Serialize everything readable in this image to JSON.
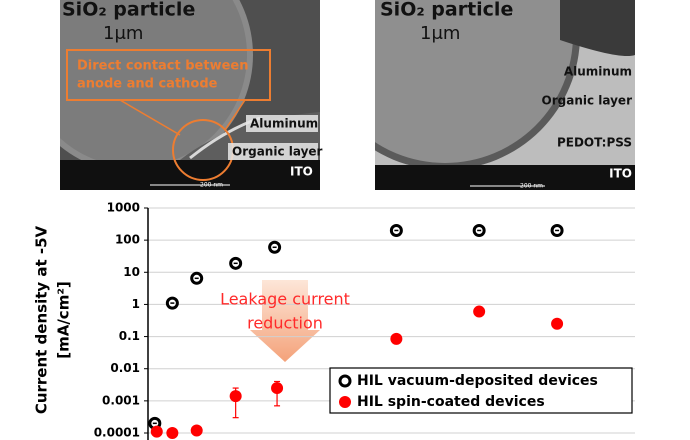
{
  "images": [
    {
      "particle": "SiO₂ particle",
      "size": "1μm",
      "callout": [
        "Direct contact between",
        "anode and cathode"
      ],
      "layers": [
        "Aluminum",
        "Organic layer",
        "ITO"
      ],
      "scale_bar": "200 nm"
    },
    {
      "particle": "SiO₂ particle",
      "size": "1μm",
      "layers": [
        "Aluminum",
        "Organic layer",
        "PEDOT:PSS",
        "ITO"
      ],
      "scale_bar": "200 nm"
    }
  ],
  "chart_data": {
    "type": "scatter",
    "y_label": [
      "Current density at -5V",
      "[mA/cm²]"
    ],
    "annotation": [
      "Leakage current",
      "reduction"
    ],
    "log_y": true,
    "grid": true,
    "legend": "lower right",
    "xlim": [
      0,
      10
    ],
    "ylim": [
      0.0001,
      1000
    ],
    "yticks": [
      1000,
      100,
      10,
      1,
      0.1,
      0.01,
      0.001,
      0.0001
    ],
    "series": [
      {
        "name": "HIL vacuum-deposited devices",
        "color": "#000000",
        "marker": "ring",
        "x": [
          0.14,
          0.5,
          1.0,
          1.8,
          2.6,
          5.1,
          6.8,
          8.4
        ],
        "values": [
          0.0002,
          1.1,
          6.5,
          19,
          60,
          200,
          200,
          200
        ]
      },
      {
        "name": "HIL spin-coated devices",
        "color": "#ff0000",
        "marker": "filled",
        "x": [
          0.18,
          0.5,
          1.0,
          1.8,
          2.65,
          5.1,
          6.8,
          8.4
        ],
        "values": [
          0.00011,
          0.0001,
          0.00012,
          0.0014,
          0.0025,
          0.085,
          0.6,
          0.25
        ],
        "error_low": [
          null,
          null,
          null,
          0.0003,
          0.0007,
          null,
          null,
          null
        ],
        "error_high": [
          null,
          null,
          null,
          0.0025,
          0.004,
          null,
          null,
          null
        ]
      }
    ]
  }
}
